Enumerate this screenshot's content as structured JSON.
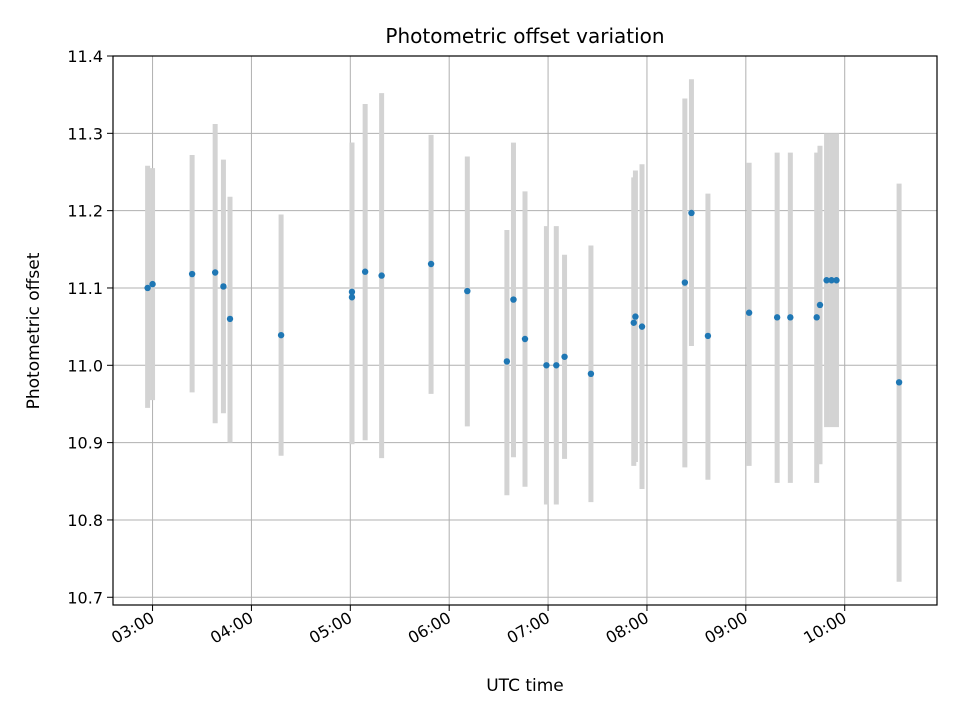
{
  "chart_data": {
    "type": "scatter",
    "title": "Photometric offset variation",
    "xlabel": "UTC time",
    "ylabel": "Photometric offset",
    "x_axis_type": "time",
    "xlim": [
      "02:36",
      "10:56"
    ],
    "ylim": [
      10.69,
      11.4
    ],
    "yticks": [
      10.7,
      10.8,
      10.9,
      11.0,
      11.1,
      11.2,
      11.3,
      11.4
    ],
    "ytick_labels": [
      "10.7",
      "10.8",
      "10.9",
      "11.0",
      "11.1",
      "11.2",
      "11.3",
      "11.4"
    ],
    "xticks": [
      "03:00",
      "04:00",
      "05:00",
      "06:00",
      "07:00",
      "08:00",
      "09:00",
      "10:00"
    ],
    "grid": true,
    "legend": "none",
    "marker_color": "#1f77b4",
    "errorbar_color": "#d3d3d3",
    "points": [
      {
        "time": "02:57",
        "value": 11.1,
        "low": 10.945,
        "high": 11.258
      },
      {
        "time": "03:00",
        "value": 11.105,
        "low": 10.955,
        "high": 11.255
      },
      {
        "time": "03:24",
        "value": 11.118,
        "low": 10.965,
        "high": 11.272
      },
      {
        "time": "03:38",
        "value": 11.12,
        "low": 10.925,
        "high": 11.312
      },
      {
        "time": "03:43",
        "value": 11.102,
        "low": 10.938,
        "high": 11.266
      },
      {
        "time": "03:47",
        "value": 11.06,
        "low": 10.9,
        "high": 11.218
      },
      {
        "time": "04:18",
        "value": 11.039,
        "low": 10.883,
        "high": 11.195
      },
      {
        "time": "05:01",
        "value": 11.088,
        "low": 10.898,
        "high": 11.288
      },
      {
        "time": "05:01",
        "value": 11.095,
        "low": 10.898,
        "high": 11.288
      },
      {
        "time": "05:09",
        "value": 11.121,
        "low": 10.903,
        "high": 11.338
      },
      {
        "time": "05:19",
        "value": 11.116,
        "low": 10.88,
        "high": 11.352
      },
      {
        "time": "05:49",
        "value": 11.131,
        "low": 10.963,
        "high": 11.298
      },
      {
        "time": "06:11",
        "value": 11.096,
        "low": 10.921,
        "high": 11.27
      },
      {
        "time": "06:35",
        "value": 11.005,
        "low": 10.832,
        "high": 11.175
      },
      {
        "time": "06:39",
        "value": 11.085,
        "low": 10.881,
        "high": 11.288
      },
      {
        "time": "06:46",
        "value": 11.034,
        "low": 10.843,
        "high": 11.225
      },
      {
        "time": "06:59",
        "value": 11.0,
        "low": 10.82,
        "high": 11.18
      },
      {
        "time": "07:05",
        "value": 11.0,
        "low": 10.82,
        "high": 11.18
      },
      {
        "time": "07:10",
        "value": 11.011,
        "low": 10.879,
        "high": 11.143
      },
      {
        "time": "07:26",
        "value": 10.989,
        "low": 10.823,
        "high": 11.155
      },
      {
        "time": "07:52",
        "value": 11.055,
        "low": 10.87,
        "high": 11.243
      },
      {
        "time": "07:53",
        "value": 11.063,
        "low": 10.875,
        "high": 11.252
      },
      {
        "time": "07:57",
        "value": 11.05,
        "low": 10.84,
        "high": 11.26
      },
      {
        "time": "08:23",
        "value": 11.107,
        "low": 10.868,
        "high": 11.345
      },
      {
        "time": "08:27",
        "value": 11.197,
        "low": 11.025,
        "high": 11.37
      },
      {
        "time": "08:37",
        "value": 11.038,
        "low": 10.852,
        "high": 11.222
      },
      {
        "time": "09:02",
        "value": 11.068,
        "low": 10.87,
        "high": 11.262
      },
      {
        "time": "09:19",
        "value": 11.062,
        "low": 10.848,
        "high": 11.275
      },
      {
        "time": "09:27",
        "value": 11.062,
        "low": 10.848,
        "high": 11.275
      },
      {
        "time": "09:43",
        "value": 11.062,
        "low": 10.848,
        "high": 11.275
      },
      {
        "time": "09:45",
        "value": 11.078,
        "low": 10.872,
        "high": 11.284
      },
      {
        "time": "09:49",
        "value": 11.11,
        "low": 10.92,
        "high": 11.3
      },
      {
        "time": "09:52",
        "value": 11.11,
        "low": 10.92,
        "high": 11.3
      },
      {
        "time": "09:55",
        "value": 11.11,
        "low": 10.92,
        "high": 11.3
      },
      {
        "time": "10:33",
        "value": 10.978,
        "low": 10.72,
        "high": 11.235
      }
    ]
  }
}
